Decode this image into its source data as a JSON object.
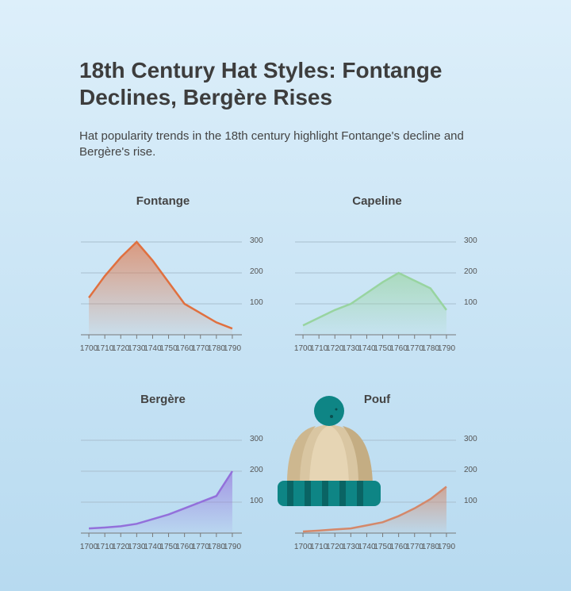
{
  "title": "18th Century Hat Styles: Fontange Declines, Bergère Rises",
  "subtitle": "Hat popularity trends in the 18th century highlight Fontange's decline and Bergère's rise.",
  "chart_data": [
    {
      "type": "area",
      "title": "Fontange",
      "color": "#e0703f",
      "x": [
        1700,
        1710,
        1720,
        1730,
        1740,
        1750,
        1760,
        1770,
        1780,
        1790
      ],
      "values": [
        120,
        190,
        250,
        300,
        240,
        170,
        100,
        70,
        40,
        20
      ],
      "xlim": [
        1694,
        1796
      ],
      "ylim": [
        0,
        300
      ],
      "yticks": [
        100,
        200,
        300
      ],
      "grid": true
    },
    {
      "type": "area",
      "title": "Capeline",
      "color": "#98d4a0",
      "x": [
        1700,
        1710,
        1720,
        1730,
        1740,
        1750,
        1760,
        1770,
        1780,
        1790
      ],
      "values": [
        30,
        55,
        80,
        100,
        135,
        170,
        200,
        175,
        150,
        80
      ],
      "xlim": [
        1694,
        1796
      ],
      "ylim": [
        0,
        300
      ],
      "yticks": [
        100,
        200,
        300
      ],
      "grid": true
    },
    {
      "type": "area",
      "title": "Bergère",
      "color": "#9370db",
      "x": [
        1700,
        1710,
        1720,
        1730,
        1740,
        1750,
        1760,
        1770,
        1780,
        1790
      ],
      "values": [
        15,
        18,
        22,
        30,
        45,
        60,
        80,
        100,
        120,
        200
      ],
      "xlim": [
        1694,
        1796
      ],
      "ylim": [
        0,
        300
      ],
      "yticks": [
        100,
        200,
        300
      ],
      "grid": true
    },
    {
      "type": "area",
      "title": "Pouf",
      "color": "#d4886a",
      "x": [
        1700,
        1710,
        1720,
        1730,
        1740,
        1750,
        1760,
        1770,
        1780,
        1790
      ],
      "values": [
        5,
        8,
        12,
        15,
        25,
        35,
        55,
        80,
        110,
        150
      ],
      "xlim": [
        1694,
        1796
      ],
      "ylim": [
        0,
        300
      ],
      "yticks": [
        100,
        200,
        300
      ],
      "grid": true
    }
  ]
}
